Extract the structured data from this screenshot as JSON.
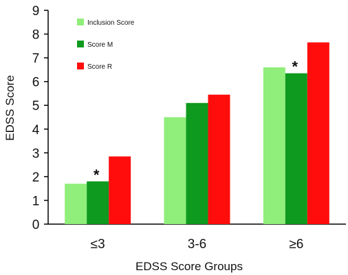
{
  "chart_data": {
    "type": "bar",
    "title": "",
    "xlabel": "EDSS Score Groups",
    "ylabel": "EDSS Score",
    "ylim": [
      0,
      9
    ],
    "y_ticks": [
      "0",
      "1",
      "2",
      "3",
      "4",
      "5",
      "6",
      "7",
      "8",
      "9"
    ],
    "categories": [
      "≤3",
      "3-6",
      "≥6"
    ],
    "series": [
      {
        "name": "Inclusion Score",
        "color": "#90ee7a",
        "values": [
          1.7,
          4.5,
          6.6
        ]
      },
      {
        "name": "Score M",
        "color": "#0e9a1e",
        "values": [
          1.8,
          5.1,
          6.35
        ]
      },
      {
        "name": "Score R",
        "color": "#ff0d0d",
        "values": [
          2.85,
          5.45,
          7.65
        ]
      }
    ],
    "annotations": [
      {
        "text": "*",
        "category": "≤3",
        "series": "Score M"
      },
      {
        "text": "*",
        "category": "≥6",
        "series": "Score M"
      }
    ],
    "grid": false,
    "legend": "top-left"
  }
}
